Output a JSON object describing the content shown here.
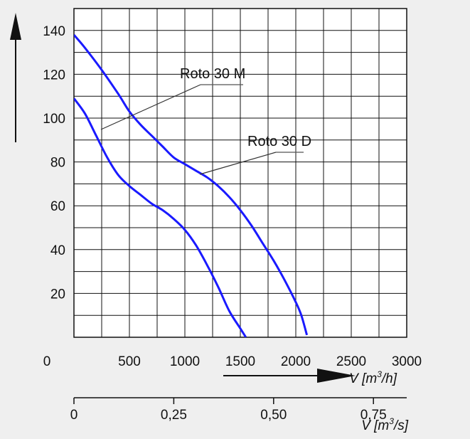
{
  "chart_data": {
    "type": "line",
    "title": "",
    "x_primary": {
      "label_parts": [
        "V [m",
        "3",
        "/h]"
      ],
      "ticks": [
        0,
        500,
        1000,
        1500,
        2000,
        2500,
        3000
      ],
      "tick_labels": [
        "0",
        "500",
        "1000",
        "1500",
        "2000",
        "2500",
        "3000"
      ],
      "range": [
        0,
        3000
      ]
    },
    "x_secondary": {
      "label_parts": [
        "V [m",
        "3",
        "/s]"
      ],
      "ticks": [
        0,
        0.25,
        0.5,
        0.75
      ],
      "tick_labels": [
        "0",
        "0,25",
        "0,50",
        "0,75"
      ]
    },
    "y": {
      "ticks": [
        20,
        40,
        60,
        80,
        100,
        120,
        140
      ],
      "tick_labels": [
        "20",
        "40",
        "60",
        "80",
        "100",
        "120",
        "140"
      ],
      "range": [
        0,
        150
      ]
    },
    "grid": true,
    "series_color": "#1a1aff",
    "series": [
      {
        "name": "Roto 30 M",
        "x": [
          0,
          100,
          250,
          400,
          500,
          600,
          700,
          800,
          900,
          1000,
          1100,
          1200,
          1300,
          1400,
          1500,
          1600,
          1700,
          1800,
          1900,
          2000,
          2050,
          2100
        ],
        "y": [
          138,
          132,
          122,
          111,
          103,
          97,
          92,
          87,
          82,
          79,
          76,
          73,
          69,
          64,
          58,
          51,
          43,
          35,
          26,
          16,
          10,
          1
        ]
      },
      {
        "name": "Roto 30 D",
        "x": [
          0,
          100,
          200,
          300,
          400,
          500,
          600,
          700,
          800,
          900,
          1000,
          1100,
          1200,
          1300,
          1400,
          1500,
          1550
        ],
        "y": [
          109,
          102,
          92,
          82,
          74,
          69,
          65,
          61,
          58,
          54,
          49,
          42,
          33,
          23,
          12,
          4,
          0
        ]
      }
    ],
    "annotations": [
      {
        "text": "Roto 30 M",
        "series": "Roto 30 M"
      },
      {
        "text": "Roto 30 D",
        "series": "Roto 30 D"
      }
    ]
  }
}
